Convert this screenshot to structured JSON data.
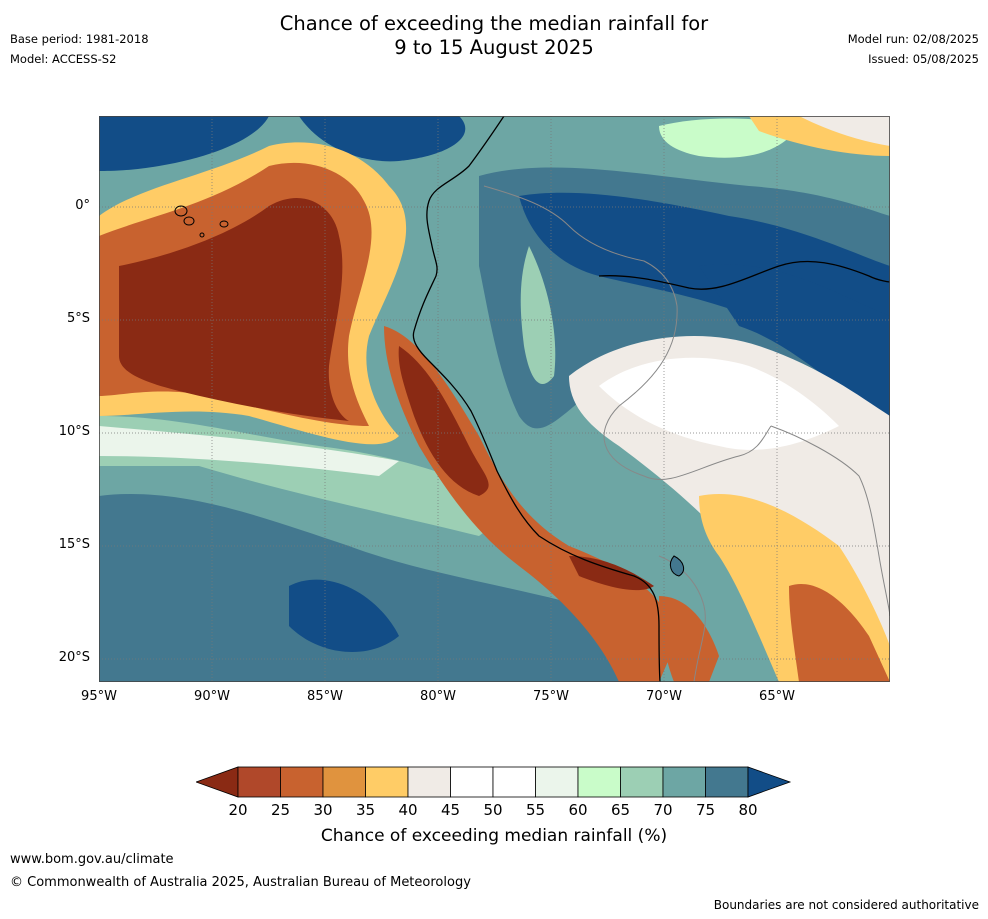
{
  "title_line1": "Chance of exceeding the median rainfall for",
  "title_line2": "9 to 15 August 2025",
  "base_period": "Base period: 1981-2018",
  "model": "Model: ACCESS-S2",
  "model_run": "Model run: 02/08/2025",
  "issued": "Issued: 05/08/2025",
  "map": {
    "lat_labels": [
      "0°",
      "5°S",
      "10°S",
      "15°S",
      "20°S"
    ],
    "lon_labels": [
      "95°W",
      "90°W",
      "85°W",
      "80°W",
      "75°W",
      "70°W",
      "65°W"
    ],
    "ocean_color": "#5c94a0"
  },
  "colorbar": {
    "ticks": [
      "20",
      "25",
      "30",
      "35",
      "40",
      "45",
      "50",
      "55",
      "60",
      "65",
      "70",
      "75",
      "80"
    ],
    "colors": [
      "#8a2a14",
      "#b0482a",
      "#c8622f",
      "#e0933e",
      "#ffcc66",
      "#f0ebe6",
      "#ffffff",
      "#ffffff",
      "#ebf5eb",
      "#c9fcc9",
      "#9ccfb4",
      "#6da6a4",
      "#43788f",
      "#124d87"
    ],
    "label": "Chance of exceeding median rainfall (%)"
  },
  "footer": {
    "url": "www.bom.gov.au/climate",
    "copyright": "© Commonwealth of Australia 2025, Australian Bureau of Meteorology",
    "note": "Boundaries are not considered authoritative"
  }
}
